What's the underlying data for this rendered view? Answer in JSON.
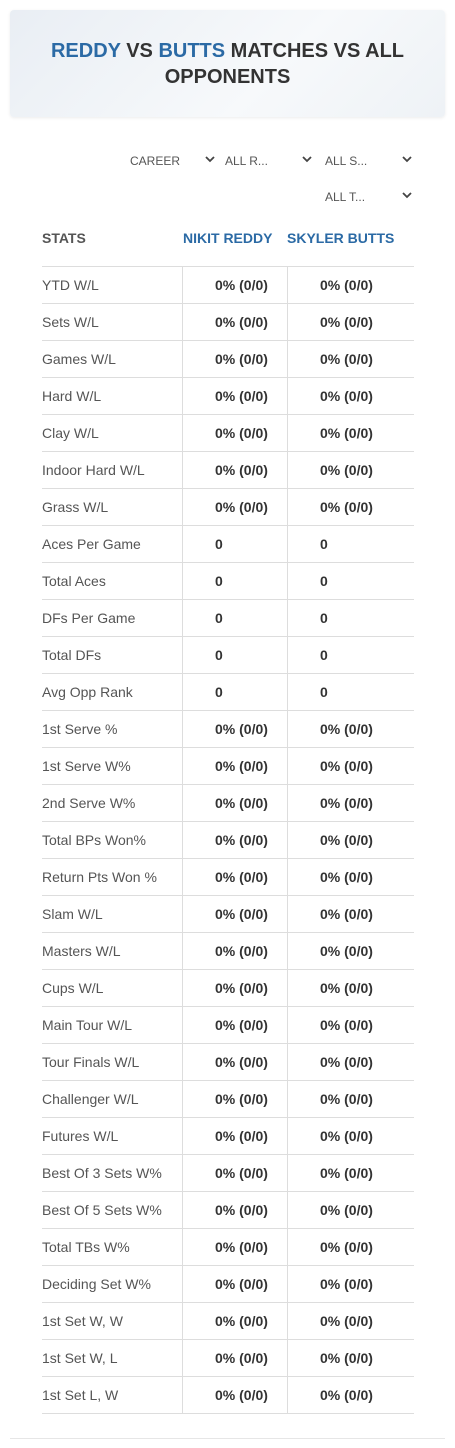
{
  "header": {
    "title": [
      "REDDY",
      "VS",
      "BUTTS",
      "MATCHES VS ALL OPPONENTS"
    ]
  },
  "filters": [
    "CAREER",
    "ALL R...",
    "ALL S...",
    "ALL T..."
  ],
  "table": {
    "header": [
      "STATS",
      "NIKIT REDDY",
      "SKYLER BUTTS"
    ],
    "rows": [
      [
        "YTD W/L",
        "0% (0/0)",
        "0% (0/0)"
      ],
      [
        "Sets W/L",
        "0% (0/0)",
        "0% (0/0)"
      ],
      [
        "Games W/L",
        "0% (0/0)",
        "0% (0/0)"
      ],
      [
        "Hard W/L",
        "0% (0/0)",
        "0% (0/0)"
      ],
      [
        "Clay W/L",
        "0% (0/0)",
        "0% (0/0)"
      ],
      [
        "Indoor Hard W/L",
        "0% (0/0)",
        "0% (0/0)"
      ],
      [
        "Grass W/L",
        "0% (0/0)",
        "0% (0/0)"
      ],
      [
        "Aces Per Game",
        0,
        0
      ],
      [
        "Total Aces",
        0,
        0
      ],
      [
        "DFs Per Game",
        0,
        0
      ],
      [
        "Total DFs",
        0,
        0
      ],
      [
        "Avg Opp Rank",
        0,
        0
      ],
      [
        "1st Serve %",
        "0% (0/0)",
        "0% (0/0)"
      ],
      [
        "1st Serve W%",
        "0% (0/0)",
        "0% (0/0)"
      ],
      [
        "2nd Serve W%",
        "0% (0/0)",
        "0% (0/0)"
      ],
      [
        "Total BPs Won%",
        "0% (0/0)",
        "0% (0/0)"
      ],
      [
        "Return Pts Won %",
        "0% (0/0)",
        "0% (0/0)"
      ],
      [
        "Slam W/L",
        "0% (0/0)",
        "0% (0/0)"
      ],
      [
        "Masters W/L",
        "0% (0/0)",
        "0% (0/0)"
      ],
      [
        "Cups W/L",
        "0% (0/0)",
        "0% (0/0)"
      ],
      [
        "Main Tour W/L",
        "0% (0/0)",
        "0% (0/0)"
      ],
      [
        "Tour Finals W/L",
        "0% (0/0)",
        "0% (0/0)"
      ],
      [
        "Challenger W/L",
        "0% (0/0)",
        "0% (0/0)"
      ],
      [
        "Futures W/L",
        "0% (0/0)",
        "0% (0/0)"
      ],
      [
        "Best Of 3 Sets W%",
        "0% (0/0)",
        "0% (0/0)"
      ],
      [
        "Best Of 5 Sets W%",
        "0% (0/0)",
        "0% (0/0)"
      ],
      [
        "Total TBs W%",
        "0% (0/0)",
        "0% (0/0)"
      ],
      [
        "Deciding Set W%",
        "0% (0/0)",
        "0% (0/0)"
      ],
      [
        "1st Set W, W",
        "0% (0/0)",
        "0% (0/0)"
      ],
      [
        "1st Set W, L",
        "0% (0/0)",
        "0% (0/0)"
      ],
      [
        "1st Set L, W",
        "0% (0/0)",
        "0% (0/0)"
      ]
    ]
  }
}
